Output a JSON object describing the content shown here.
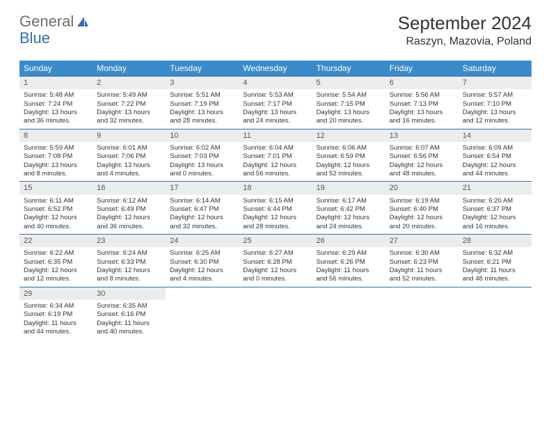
{
  "logo": {
    "text1": "General",
    "text2": "Blue"
  },
  "title": "September 2024",
  "location": "Raszyn, Mazovia, Poland",
  "day_headers": [
    "Sunday",
    "Monday",
    "Tuesday",
    "Wednesday",
    "Thursday",
    "Friday",
    "Saturday"
  ],
  "colors": {
    "header_bg": "#3b8bca",
    "header_text": "#ffffff",
    "daynum_bg": "#ececec",
    "border": "#2f6fb0",
    "logo_gray": "#6e6e6e",
    "logo_blue": "#2f6fb0"
  },
  "weeks": [
    [
      {
        "n": "1",
        "sr": "Sunrise: 5:48 AM",
        "ss": "Sunset: 7:24 PM",
        "d1": "Daylight: 13 hours",
        "d2": "and 36 minutes."
      },
      {
        "n": "2",
        "sr": "Sunrise: 5:49 AM",
        "ss": "Sunset: 7:22 PM",
        "d1": "Daylight: 13 hours",
        "d2": "and 32 minutes."
      },
      {
        "n": "3",
        "sr": "Sunrise: 5:51 AM",
        "ss": "Sunset: 7:19 PM",
        "d1": "Daylight: 13 hours",
        "d2": "and 28 minutes."
      },
      {
        "n": "4",
        "sr": "Sunrise: 5:53 AM",
        "ss": "Sunset: 7:17 PM",
        "d1": "Daylight: 13 hours",
        "d2": "and 24 minutes."
      },
      {
        "n": "5",
        "sr": "Sunrise: 5:54 AM",
        "ss": "Sunset: 7:15 PM",
        "d1": "Daylight: 13 hours",
        "d2": "and 20 minutes."
      },
      {
        "n": "6",
        "sr": "Sunrise: 5:56 AM",
        "ss": "Sunset: 7:13 PM",
        "d1": "Daylight: 13 hours",
        "d2": "and 16 minutes."
      },
      {
        "n": "7",
        "sr": "Sunrise: 5:57 AM",
        "ss": "Sunset: 7:10 PM",
        "d1": "Daylight: 13 hours",
        "d2": "and 12 minutes."
      }
    ],
    [
      {
        "n": "8",
        "sr": "Sunrise: 5:59 AM",
        "ss": "Sunset: 7:08 PM",
        "d1": "Daylight: 13 hours",
        "d2": "and 8 minutes."
      },
      {
        "n": "9",
        "sr": "Sunrise: 6:01 AM",
        "ss": "Sunset: 7:06 PM",
        "d1": "Daylight: 13 hours",
        "d2": "and 4 minutes."
      },
      {
        "n": "10",
        "sr": "Sunrise: 6:02 AM",
        "ss": "Sunset: 7:03 PM",
        "d1": "Daylight: 13 hours",
        "d2": "and 0 minutes."
      },
      {
        "n": "11",
        "sr": "Sunrise: 6:04 AM",
        "ss": "Sunset: 7:01 PM",
        "d1": "Daylight: 12 hours",
        "d2": "and 56 minutes."
      },
      {
        "n": "12",
        "sr": "Sunrise: 6:06 AM",
        "ss": "Sunset: 6:59 PM",
        "d1": "Daylight: 12 hours",
        "d2": "and 52 minutes."
      },
      {
        "n": "13",
        "sr": "Sunrise: 6:07 AM",
        "ss": "Sunset: 6:56 PM",
        "d1": "Daylight: 12 hours",
        "d2": "and 48 minutes."
      },
      {
        "n": "14",
        "sr": "Sunrise: 6:09 AM",
        "ss": "Sunset: 6:54 PM",
        "d1": "Daylight: 12 hours",
        "d2": "and 44 minutes."
      }
    ],
    [
      {
        "n": "15",
        "sr": "Sunrise: 6:11 AM",
        "ss": "Sunset: 6:52 PM",
        "d1": "Daylight: 12 hours",
        "d2": "and 40 minutes."
      },
      {
        "n": "16",
        "sr": "Sunrise: 6:12 AM",
        "ss": "Sunset: 6:49 PM",
        "d1": "Daylight: 12 hours",
        "d2": "and 36 minutes."
      },
      {
        "n": "17",
        "sr": "Sunrise: 6:14 AM",
        "ss": "Sunset: 6:47 PM",
        "d1": "Daylight: 12 hours",
        "d2": "and 32 minutes."
      },
      {
        "n": "18",
        "sr": "Sunrise: 6:15 AM",
        "ss": "Sunset: 6:44 PM",
        "d1": "Daylight: 12 hours",
        "d2": "and 28 minutes."
      },
      {
        "n": "19",
        "sr": "Sunrise: 6:17 AM",
        "ss": "Sunset: 6:42 PM",
        "d1": "Daylight: 12 hours",
        "d2": "and 24 minutes."
      },
      {
        "n": "20",
        "sr": "Sunrise: 6:19 AM",
        "ss": "Sunset: 6:40 PM",
        "d1": "Daylight: 12 hours",
        "d2": "and 20 minutes."
      },
      {
        "n": "21",
        "sr": "Sunrise: 6:20 AM",
        "ss": "Sunset: 6:37 PM",
        "d1": "Daylight: 12 hours",
        "d2": "and 16 minutes."
      }
    ],
    [
      {
        "n": "22",
        "sr": "Sunrise: 6:22 AM",
        "ss": "Sunset: 6:35 PM",
        "d1": "Daylight: 12 hours",
        "d2": "and 12 minutes."
      },
      {
        "n": "23",
        "sr": "Sunrise: 6:24 AM",
        "ss": "Sunset: 6:33 PM",
        "d1": "Daylight: 12 hours",
        "d2": "and 8 minutes."
      },
      {
        "n": "24",
        "sr": "Sunrise: 6:25 AM",
        "ss": "Sunset: 6:30 PM",
        "d1": "Daylight: 12 hours",
        "d2": "and 4 minutes."
      },
      {
        "n": "25",
        "sr": "Sunrise: 6:27 AM",
        "ss": "Sunset: 6:28 PM",
        "d1": "Daylight: 12 hours",
        "d2": "and 0 minutes."
      },
      {
        "n": "26",
        "sr": "Sunrise: 6:29 AM",
        "ss": "Sunset: 6:26 PM",
        "d1": "Daylight: 11 hours",
        "d2": "and 56 minutes."
      },
      {
        "n": "27",
        "sr": "Sunrise: 6:30 AM",
        "ss": "Sunset: 6:23 PM",
        "d1": "Daylight: 11 hours",
        "d2": "and 52 minutes."
      },
      {
        "n": "28",
        "sr": "Sunrise: 6:32 AM",
        "ss": "Sunset: 6:21 PM",
        "d1": "Daylight: 11 hours",
        "d2": "and 48 minutes."
      }
    ],
    [
      {
        "n": "29",
        "sr": "Sunrise: 6:34 AM",
        "ss": "Sunset: 6:19 PM",
        "d1": "Daylight: 11 hours",
        "d2": "and 44 minutes."
      },
      {
        "n": "30",
        "sr": "Sunrise: 6:35 AM",
        "ss": "Sunset: 6:16 PM",
        "d1": "Daylight: 11 hours",
        "d2": "and 40 minutes."
      },
      null,
      null,
      null,
      null,
      null
    ]
  ]
}
